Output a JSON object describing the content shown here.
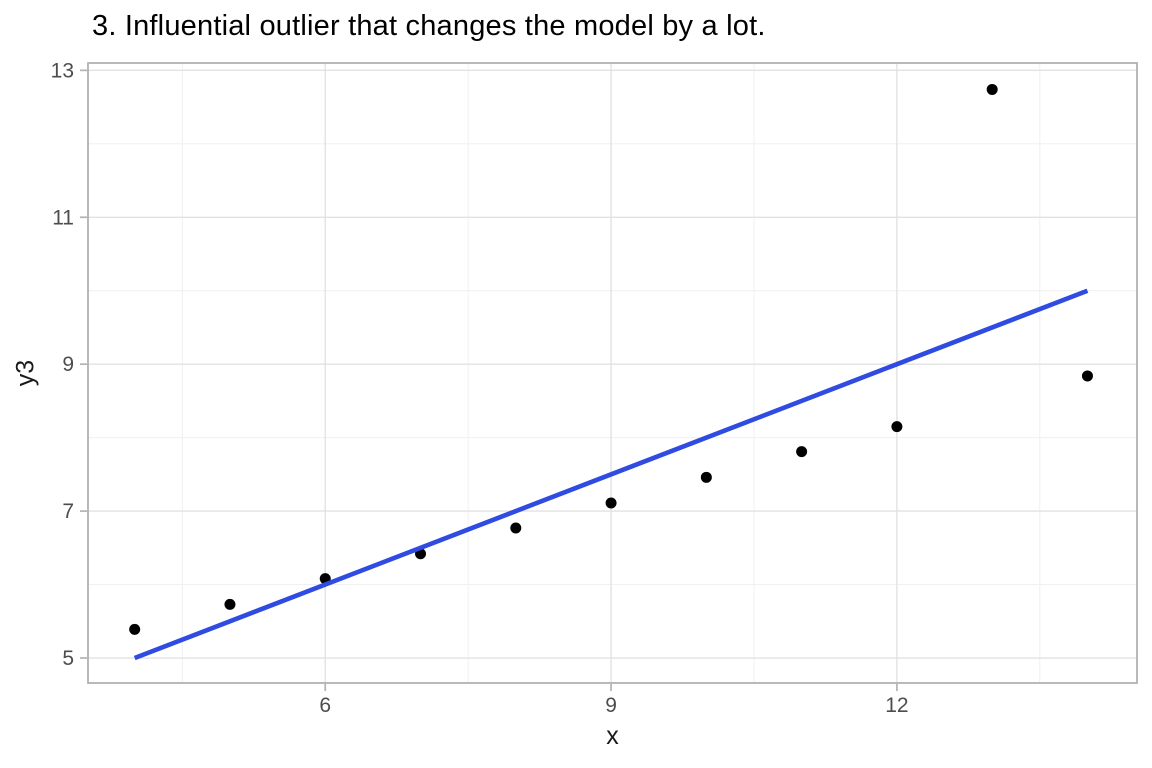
{
  "chart_data": {
    "type": "scatter",
    "title": "3. Influential outlier that changes the model by a lot.",
    "xlabel": "x",
    "ylabel": "y3",
    "points": [
      {
        "x": 4,
        "y": 5.39
      },
      {
        "x": 5,
        "y": 5.73
      },
      {
        "x": 6,
        "y": 6.08
      },
      {
        "x": 7,
        "y": 6.42
      },
      {
        "x": 8,
        "y": 6.77
      },
      {
        "x": 9,
        "y": 7.11
      },
      {
        "x": 10,
        "y": 7.46
      },
      {
        "x": 11,
        "y": 7.81
      },
      {
        "x": 12,
        "y": 8.15
      },
      {
        "x": 13,
        "y": 12.74
      },
      {
        "x": 14,
        "y": 8.84
      }
    ],
    "regression_line": {
      "x_start": 4,
      "y_start": 5.0,
      "x_end": 14,
      "y_end": 10.0
    },
    "xlim": [
      3.51,
      14.52
    ],
    "ylim": [
      4.66,
      13.1
    ],
    "x_major_ticks": [
      6,
      9,
      12
    ],
    "x_minor_ticks": [
      4.5,
      7.5,
      10.5,
      13.5
    ],
    "y_major_ticks": [
      5,
      7,
      9,
      11,
      13
    ],
    "y_minor_ticks": [
      6,
      8,
      10,
      12
    ],
    "grid": true,
    "legend": "none",
    "colors": {
      "point": "#000000",
      "line": "#2F4BE1",
      "grid_major": "#E2E2E2",
      "grid_minor": "#F1F1F1",
      "panel_border": "#ADADAD",
      "tick_mark": "#B3B3B3",
      "tick_label": "#4D4D4D",
      "axis_title": "#1A1A1A",
      "title": "#000000",
      "background": "#FFFFFF"
    }
  }
}
